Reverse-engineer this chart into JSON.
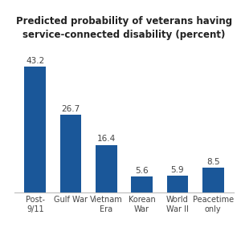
{
  "title": "Predicted probability of veterans having\nservice-connected disability (percent)",
  "categories": [
    "Post-\n9/11",
    "Gulf War",
    "Vietnam\nEra",
    "Korean\nWar",
    "World\nWar II",
    "Peacetime\nonly"
  ],
  "values": [
    43.2,
    26.7,
    16.4,
    5.6,
    5.9,
    8.5
  ],
  "bar_color": "#1a5799",
  "value_labels": [
    "43.2",
    "26.7",
    "16.4",
    "5.6",
    "5.9",
    "8.5"
  ],
  "ylim": [
    0,
    50
  ],
  "title_fontsize": 8.5,
  "label_fontsize": 7.5,
  "tick_fontsize": 7,
  "background_color": "#ffffff"
}
